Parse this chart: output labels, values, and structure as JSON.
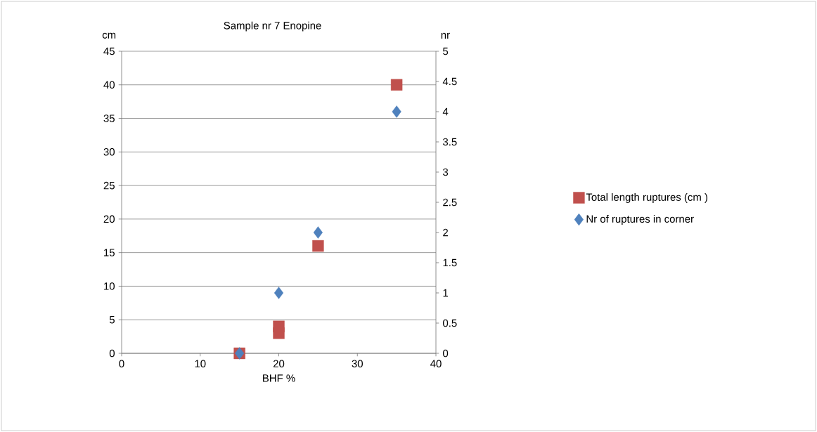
{
  "chart_data": {
    "type": "scatter",
    "title": "Sample nr 7 Enopine",
    "xlabel": "BHF %",
    "ylabel": "cm",
    "y2label": "nr",
    "xlim": [
      0,
      40
    ],
    "xticks": [
      0,
      10,
      20,
      30,
      40
    ],
    "ylim": [
      0,
      45
    ],
    "yticks": [
      0,
      5,
      10,
      15,
      20,
      25,
      30,
      35,
      40,
      45
    ],
    "y2lim": [
      0,
      5
    ],
    "y2ticks": [
      0,
      0.5,
      1,
      1.5,
      2,
      2.5,
      3,
      3.5,
      4,
      4.5,
      5
    ],
    "grid": "y",
    "legend": "right",
    "series": [
      {
        "name": "Total length ruptures (cm )",
        "color": "#c0504d",
        "marker": "square",
        "x": [
          15,
          20,
          20,
          25,
          35
        ],
        "values": [
          0,
          3,
          4,
          16,
          40
        ]
      },
      {
        "name": "Nr of ruptures in corner",
        "color": "#4f81bd",
        "marker": "diamond",
        "axis": "y2",
        "x": [
          15,
          20,
          25,
          35
        ],
        "values": [
          0,
          1,
          2,
          4
        ]
      }
    ]
  }
}
